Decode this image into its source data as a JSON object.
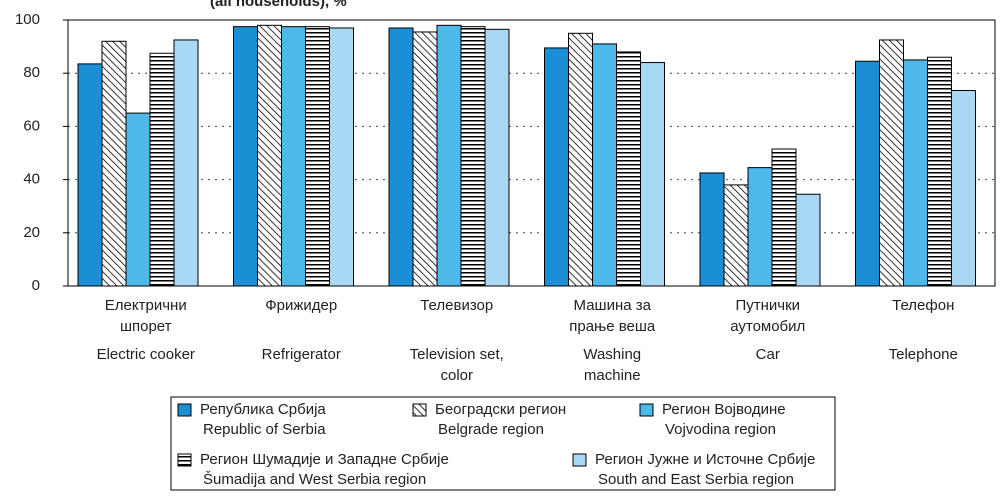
{
  "chart_data": {
    "type": "bar",
    "subtitle": "(all households), %",
    "categories": [
      [
        "Електрични",
        "шпорет"
      ],
      [
        "Фрижидер"
      ],
      [
        "Телевизор"
      ],
      [
        "Машина за",
        "прање веша"
      ],
      [
        "Путнички",
        "аутомобил"
      ],
      [
        "Телефон"
      ]
    ],
    "categories_en": [
      [
        "Electric cooker"
      ],
      [
        "Refrigerator"
      ],
      [
        "Television set,",
        "color"
      ],
      [
        "Washing",
        "machine"
      ],
      [
        "Car"
      ],
      [
        "Telephone"
      ]
    ],
    "series": [
      {
        "name": [
          "Република Србија",
          "Republic of Serbia"
        ],
        "color": "#1a8fd6",
        "pattern": "solid",
        "values": [
          83.5,
          97.5,
          97,
          89.5,
          42.5,
          84.5
        ]
      },
      {
        "name": [
          "Београдски регион",
          "Belgrade region"
        ],
        "color": "#000000",
        "pattern": "diagonal",
        "values": [
          92,
          98,
          95.5,
          95,
          38,
          92.5
        ]
      },
      {
        "name": [
          "Регион Војводине",
          "Vojvodina region"
        ],
        "color": "#4db8ea",
        "pattern": "solid",
        "values": [
          65,
          97.5,
          98,
          91,
          44.5,
          85
        ]
      },
      {
        "name": [
          "Регион Шумадије и Западне Србије",
          "Šumadija and West Serbia region"
        ],
        "color": "#000000",
        "pattern": "horizontal",
        "values": [
          87.5,
          97.5,
          97.5,
          88,
          51.5,
          86
        ]
      },
      {
        "name": [
          "Регион Јужне и Источне Србије",
          "South and East Serbia region"
        ],
        "color": "#a8d8f4",
        "pattern": "solid",
        "values": [
          92.5,
          97,
          96.5,
          84,
          34.5,
          73.5
        ]
      }
    ],
    "ylim": [
      0,
      100
    ],
    "yticks": [
      0,
      20,
      40,
      60,
      80,
      100
    ],
    "grid": true
  }
}
